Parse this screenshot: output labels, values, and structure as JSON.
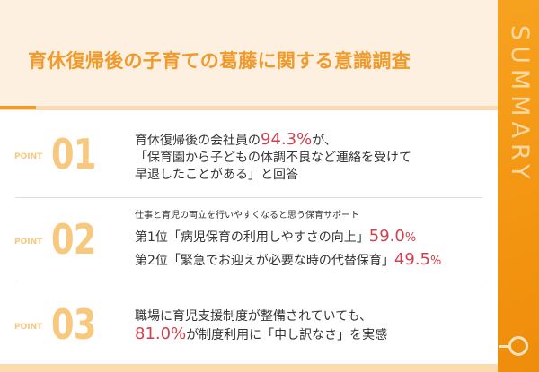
{
  "title": "育休復帰後の子育ての葛藤に関する意識調査",
  "side_label": "SUMMARY",
  "colors": {
    "accent": "#f39511",
    "highlight": "#d2404f"
  },
  "points": [
    {
      "label": "POINT",
      "number": "01",
      "line1_pre": "育休復帰後の会社員の",
      "line1_value": "94.3%",
      "line1_post": "が、",
      "line2": "「保育園から子どもの体調不良など連絡を受けて",
      "line3": "早退したことがある」と回答"
    },
    {
      "label": "POINT",
      "number": "02",
      "heading": "仕事と育児の両立を行いやすくなると思う保育サポート",
      "rank1_text": "第1位「病児保育の利用しやすさの向上」",
      "rank1_value": "59.0",
      "rank2_text": "第2位「緊急でお迎えが必要な時の代替保育」",
      "rank2_value": "49.5",
      "unit": "%"
    },
    {
      "label": "POINT",
      "number": "03",
      "line1": "職場に育児支援制度が整備されていても、",
      "line2_value": "81.0%",
      "line2_post": "が制度利用に「申し訳なさ」を実感"
    }
  ]
}
